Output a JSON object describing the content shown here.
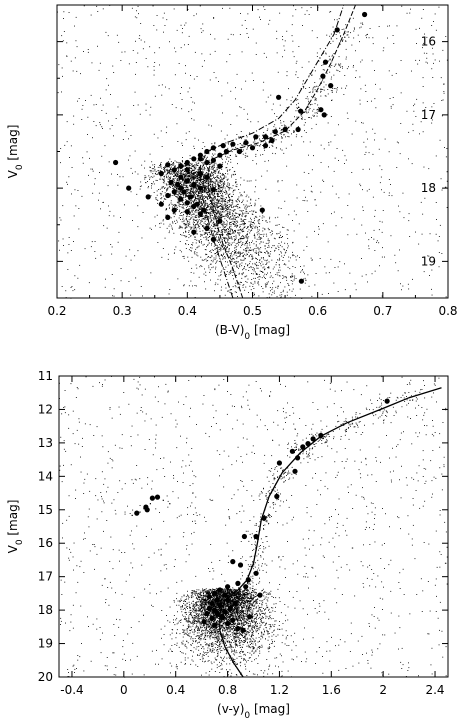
{
  "chart_data": [
    {
      "type": "scatter",
      "xlabel_main": "(B-V)",
      "xlabel_sub": "0",
      "xlabel_unit": " [mag]",
      "ylabel_main": "V",
      "ylabel_sub": "0",
      "ylabel_unit": " [mag]",
      "xlim": [
        0.2,
        0.8
      ],
      "ylim": [
        19.5,
        15.5
      ],
      "y_inverted": true,
      "xticks": [
        0.2,
        0.3,
        0.4,
        0.5,
        0.6,
        0.7,
        0.8
      ],
      "xtick_labels": [
        "0.2",
        "0.3",
        "0.4",
        "0.5",
        "0.6",
        "0.7",
        "0.8"
      ],
      "yticks": [
        16,
        17,
        18,
        19
      ],
      "ytick_labels": [
        "16",
        "17",
        "18",
        "19"
      ],
      "grid": false,
      "background_stars_color": "#000000",
      "isochrone_dashdot": [
        {
          "x": 0.47,
          "y": 19.5
        },
        {
          "x": 0.455,
          "y": 19.1
        },
        {
          "x": 0.44,
          "y": 18.7
        },
        {
          "x": 0.428,
          "y": 18.3
        },
        {
          "x": 0.42,
          "y": 18.0
        },
        {
          "x": 0.42,
          "y": 17.7
        },
        {
          "x": 0.43,
          "y": 17.5
        },
        {
          "x": 0.46,
          "y": 17.38
        },
        {
          "x": 0.5,
          "y": 17.25
        },
        {
          "x": 0.54,
          "y": 17.05
        },
        {
          "x": 0.565,
          "y": 16.8
        },
        {
          "x": 0.585,
          "y": 16.5
        },
        {
          "x": 0.605,
          "y": 16.2
        },
        {
          "x": 0.625,
          "y": 15.9
        },
        {
          "x": 0.64,
          "y": 15.5
        }
      ],
      "isochrone_dashed": [
        {
          "x": 0.485,
          "y": 19.5
        },
        {
          "x": 0.47,
          "y": 19.1
        },
        {
          "x": 0.452,
          "y": 18.7
        },
        {
          "x": 0.44,
          "y": 18.3
        },
        {
          "x": 0.432,
          "y": 18.0
        },
        {
          "x": 0.432,
          "y": 17.75
        },
        {
          "x": 0.44,
          "y": 17.6
        },
        {
          "x": 0.47,
          "y": 17.48
        },
        {
          "x": 0.51,
          "y": 17.38
        },
        {
          "x": 0.55,
          "y": 17.22
        },
        {
          "x": 0.58,
          "y": 16.95
        },
        {
          "x": 0.6,
          "y": 16.65
        },
        {
          "x": 0.62,
          "y": 16.3
        },
        {
          "x": 0.64,
          "y": 15.9
        },
        {
          "x": 0.658,
          "y": 15.5
        }
      ],
      "members": [
        [
          0.672,
          15.63
        ],
        [
          0.63,
          15.84
        ],
        [
          0.612,
          16.28
        ],
        [
          0.608,
          16.47
        ],
        [
          0.62,
          16.6
        ],
        [
          0.574,
          16.95
        ],
        [
          0.605,
          16.93
        ],
        [
          0.61,
          17.0
        ],
        [
          0.57,
          17.2
        ],
        [
          0.54,
          16.76
        ],
        [
          0.29,
          17.65
        ],
        [
          0.31,
          18.0
        ],
        [
          0.34,
          18.12
        ],
        [
          0.515,
          18.3
        ],
        [
          0.575,
          19.27
        ],
        [
          0.55,
          17.2
        ],
        [
          0.535,
          17.23
        ],
        [
          0.52,
          17.3
        ],
        [
          0.505,
          17.3
        ],
        [
          0.49,
          17.38
        ],
        [
          0.47,
          17.4
        ],
        [
          0.455,
          17.42
        ],
        [
          0.44,
          17.45
        ],
        [
          0.43,
          17.5
        ],
        [
          0.42,
          17.55
        ],
        [
          0.41,
          17.6
        ],
        [
          0.4,
          17.65
        ],
        [
          0.39,
          17.7
        ],
        [
          0.38,
          17.75
        ],
        [
          0.37,
          17.68
        ],
        [
          0.36,
          17.8
        ],
        [
          0.39,
          17.85
        ],
        [
          0.4,
          17.9
        ],
        [
          0.41,
          17.95
        ],
        [
          0.42,
          18.0
        ],
        [
          0.38,
          18.05
        ],
        [
          0.37,
          18.1
        ],
        [
          0.39,
          18.15
        ],
        [
          0.4,
          18.2
        ],
        [
          0.41,
          18.25
        ],
        [
          0.38,
          18.3
        ],
        [
          0.4,
          18.32
        ],
        [
          0.42,
          18.35
        ],
        [
          0.37,
          18.4
        ],
        [
          0.45,
          18.45
        ],
        [
          0.43,
          18.55
        ],
        [
          0.41,
          18.6
        ],
        [
          0.44,
          18.7
        ],
        [
          0.39,
          18.0
        ],
        [
          0.4,
          17.75
        ],
        [
          0.42,
          17.8
        ],
        [
          0.43,
          17.65
        ],
        [
          0.45,
          17.55
        ],
        [
          0.46,
          17.5
        ],
        [
          0.48,
          17.5
        ],
        [
          0.5,
          17.45
        ],
        [
          0.52,
          17.42
        ],
        [
          0.53,
          17.35
        ],
        [
          0.385,
          17.95
        ],
        [
          0.395,
          18.05
        ],
        [
          0.405,
          18.12
        ],
        [
          0.415,
          18.22
        ],
        [
          0.425,
          18.3
        ],
        [
          0.36,
          18.22
        ],
        [
          0.375,
          17.92
        ],
        [
          0.42,
          17.6
        ],
        [
          0.44,
          17.62
        ],
        [
          0.45,
          17.7
        ],
        [
          0.43,
          17.85
        ],
        [
          0.44,
          18.02
        ]
      ]
    },
    {
      "type": "scatter",
      "xlabel_main": "(v-y)",
      "xlabel_sub": "0",
      "xlabel_unit": " [mag]",
      "ylabel_main": "V",
      "ylabel_sub": "0",
      "ylabel_unit": " [mag]",
      "xlim": [
        -0.5,
        2.5
      ],
      "ylim": [
        20,
        11
      ],
      "y_inverted": true,
      "xticks": [
        -0.4,
        0,
        0.4,
        0.8,
        1.2,
        1.6,
        2,
        2.4
      ],
      "xtick_labels": [
        "-0.4",
        "0",
        "0.4",
        "0.8",
        "1.2",
        "1.6",
        "2",
        "2.4"
      ],
      "yticks": [
        11,
        12,
        13,
        14,
        15,
        16,
        17,
        18,
        19,
        20
      ],
      "ytick_labels": [
        "11",
        "12",
        "13",
        "14",
        "15",
        "16",
        "17",
        "18",
        "19",
        "20"
      ],
      "grid": false,
      "background_stars_color": "#000000",
      "isochrone_solid": [
        {
          "x": 0.92,
          "y": 20.0
        },
        {
          "x": 0.85,
          "y": 19.6
        },
        {
          "x": 0.78,
          "y": 19.1
        },
        {
          "x": 0.74,
          "y": 18.6
        },
        {
          "x": 0.74,
          "y": 18.1
        },
        {
          "x": 0.78,
          "y": 17.7
        },
        {
          "x": 0.88,
          "y": 17.4
        },
        {
          "x": 0.95,
          "y": 17.1
        },
        {
          "x": 1.0,
          "y": 16.6
        },
        {
          "x": 1.03,
          "y": 16.0
        },
        {
          "x": 1.06,
          "y": 15.3
        },
        {
          "x": 1.12,
          "y": 14.6
        },
        {
          "x": 1.22,
          "y": 13.9
        },
        {
          "x": 1.36,
          "y": 13.3
        },
        {
          "x": 1.52,
          "y": 12.8
        },
        {
          "x": 1.72,
          "y": 12.4
        },
        {
          "x": 1.98,
          "y": 12.0
        },
        {
          "x": 2.2,
          "y": 11.65
        },
        {
          "x": 2.45,
          "y": 11.35
        }
      ],
      "members": [
        [
          2.03,
          11.75
        ],
        [
          1.52,
          12.78
        ],
        [
          1.46,
          12.88
        ],
        [
          1.42,
          13.02
        ],
        [
          1.38,
          13.12
        ],
        [
          1.3,
          13.25
        ],
        [
          1.34,
          13.45
        ],
        [
          1.2,
          13.6
        ],
        [
          1.32,
          13.85
        ],
        [
          1.18,
          14.6
        ],
        [
          1.08,
          15.25
        ],
        [
          0.93,
          15.8
        ],
        [
          1.02,
          15.8
        ],
        [
          0.84,
          16.55
        ],
        [
          0.9,
          16.65
        ],
        [
          1.02,
          16.9
        ],
        [
          0.96,
          17.1
        ],
        [
          0.88,
          17.2
        ],
        [
          0.8,
          17.3
        ],
        [
          0.74,
          17.4
        ],
        [
          0.7,
          17.5
        ],
        [
          0.66,
          17.6
        ],
        [
          0.72,
          17.7
        ],
        [
          0.8,
          17.7
        ],
        [
          0.68,
          17.8
        ],
        [
          0.74,
          17.85
        ],
        [
          0.66,
          17.95
        ],
        [
          0.7,
          18.0
        ],
        [
          0.78,
          18.05
        ],
        [
          0.72,
          18.1
        ],
        [
          0.76,
          18.2
        ],
        [
          0.68,
          18.25
        ],
        [
          0.84,
          18.3
        ],
        [
          0.8,
          18.4
        ],
        [
          0.62,
          18.35
        ],
        [
          0.7,
          18.45
        ],
        [
          0.88,
          18.55
        ],
        [
          0.92,
          18.6
        ],
        [
          0.97,
          18.2
        ],
        [
          1.05,
          17.55
        ],
        [
          0.78,
          17.55
        ],
        [
          0.86,
          17.8
        ],
        [
          0.64,
          18.1
        ],
        [
          0.82,
          17.95
        ],
        [
          0.94,
          17.3
        ],
        [
          0.1,
          15.1
        ],
        [
          0.18,
          15.0
        ],
        [
          0.17,
          14.92
        ],
        [
          0.22,
          14.65
        ],
        [
          0.26,
          14.62
        ]
      ],
      "hb_stars": [
        [
          0.06,
          15.15
        ],
        [
          0.12,
          15.05
        ],
        [
          0.2,
          14.8
        ],
        [
          0.3,
          14.7
        ],
        [
          0.35,
          14.8
        ],
        [
          0.15,
          14.95
        ]
      ]
    }
  ]
}
